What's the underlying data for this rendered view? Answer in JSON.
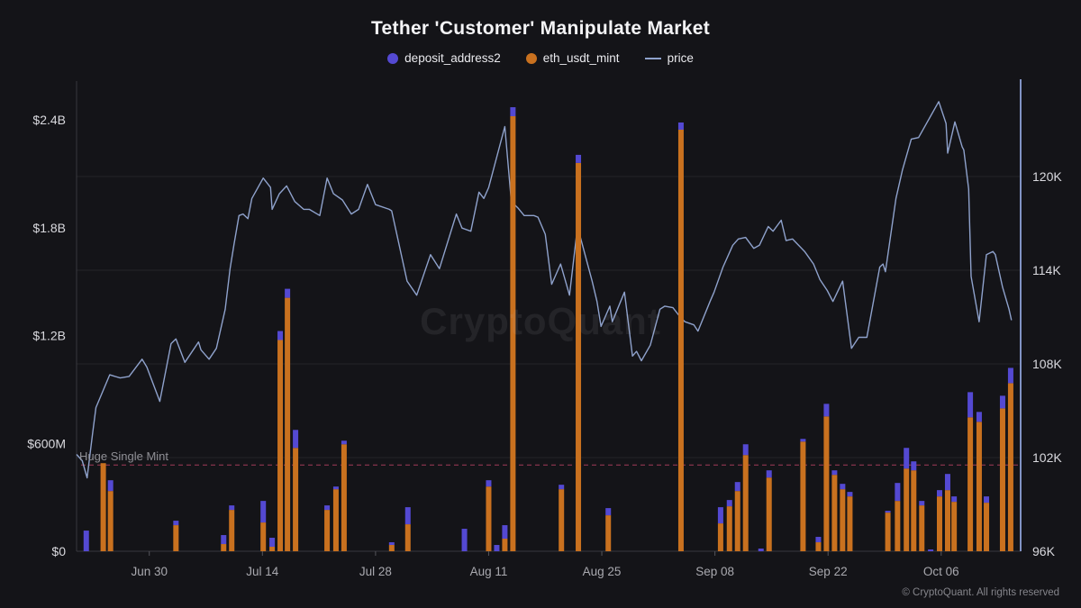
{
  "header": {
    "title": "Tether 'Customer' Manipulate Market"
  },
  "legend": [
    {
      "label": "deposit_address2",
      "marker": "circle",
      "color": "#5449d2"
    },
    {
      "label": "eth_usdt_mint",
      "marker": "circle",
      "color": "#c9711f"
    },
    {
      "label": "price",
      "marker": "line",
      "color": "#8fa2cc"
    }
  ],
  "annotation": {
    "label": "Huge Single Mint",
    "value_musd": 480
  },
  "watermark": "CryptoQuant",
  "footer": {
    "copyright": "© CryptoQuant. All rights reserved"
  },
  "colors": {
    "background": "#141418",
    "bar_mint": "#c9711f",
    "bar_deposit": "#5449d2",
    "price_line": "#8fa2cc",
    "right_axis_line": "#8193c4",
    "threshold": "#a23a58",
    "grid": "#232328",
    "axis": "#38383e",
    "tick_mark": "#55555b",
    "label_primary": "#d9d9de",
    "label_muted": "#a9a9af"
  },
  "chart_data": {
    "type": "mixed",
    "subtype": "stacked-bars-plus-line",
    "title": "Tether 'Customer' Manipulate Market",
    "legend_position": "top",
    "grid": "horizontal-only",
    "day_zero": "Jun 21",
    "x_ticks": [
      {
        "day": 9,
        "label": "Jun 30"
      },
      {
        "day": 23,
        "label": "Jul 14"
      },
      {
        "day": 37,
        "label": "Jul 28"
      },
      {
        "day": 51,
        "label": "Aug 11"
      },
      {
        "day": 65,
        "label": "Aug 25"
      },
      {
        "day": 79,
        "label": "Sep 08"
      },
      {
        "day": 93,
        "label": "Sep 22"
      },
      {
        "day": 107,
        "label": "Oct 06"
      }
    ],
    "y_left": {
      "unit": "USD",
      "range_musd": [
        0,
        2400
      ],
      "ticks": [
        {
          "value": 0,
          "label": "$0"
        },
        {
          "value": 600,
          "label": "$600M"
        },
        {
          "value": 1200,
          "label": "$1.2B"
        },
        {
          "value": 1800,
          "label": "$1.8B"
        },
        {
          "value": 2400,
          "label": "$2.4B"
        }
      ]
    },
    "y_right": {
      "unit": "USD (price)",
      "range_k": [
        96,
        126
      ],
      "ticks": [
        {
          "value": 96,
          "label": "96K"
        },
        {
          "value": 102,
          "label": "102K"
        },
        {
          "value": 108,
          "label": "108K"
        },
        {
          "value": 114,
          "label": "114K"
        },
        {
          "value": 120,
          "label": "120K"
        }
      ]
    },
    "threshold_line": {
      "label": "Huge Single Mint",
      "value_musd": 480,
      "style": "dashed"
    },
    "bars": {
      "stack_order": [
        "eth_usdt_mint",
        "deposit_address2"
      ],
      "unit": "million USD",
      "points_day_mint_deposit": [
        [
          1.2,
          0,
          115
        ],
        [
          3.3,
          490,
          0
        ],
        [
          4.2,
          335,
          60
        ],
        [
          12.3,
          145,
          25
        ],
        [
          18.2,
          40,
          50
        ],
        [
          19.2,
          230,
          25
        ],
        [
          23.1,
          160,
          120
        ],
        [
          24.2,
          25,
          50
        ],
        [
          25.2,
          1175,
          50
        ],
        [
          26.1,
          1410,
          50
        ],
        [
          27.1,
          575,
          100
        ],
        [
          31.0,
          230,
          25
        ],
        [
          32.1,
          345,
          15
        ],
        [
          33.1,
          595,
          20
        ],
        [
          39.0,
          35,
          15
        ],
        [
          41.0,
          150,
          95
        ],
        [
          48.0,
          0,
          125
        ],
        [
          51.0,
          360,
          35
        ],
        [
          52.0,
          0,
          35
        ],
        [
          53.0,
          70,
          75
        ],
        [
          54.0,
          2420,
          50
        ],
        [
          60.0,
          345,
          25
        ],
        [
          62.1,
          2160,
          45
        ],
        [
          65.8,
          200,
          40
        ],
        [
          74.8,
          2345,
          40
        ],
        [
          79.7,
          155,
          90
        ],
        [
          80.8,
          250,
          35
        ],
        [
          81.8,
          335,
          50
        ],
        [
          82.8,
          535,
          60
        ],
        [
          84.7,
          0,
          15
        ],
        [
          85.7,
          410,
          40
        ],
        [
          89.9,
          610,
          15
        ],
        [
          91.8,
          50,
          30
        ],
        [
          92.8,
          750,
          70
        ],
        [
          93.8,
          425,
          25
        ],
        [
          94.8,
          345,
          30
        ],
        [
          95.7,
          305,
          25
        ],
        [
          100.4,
          215,
          10
        ],
        [
          101.6,
          280,
          100
        ],
        [
          102.7,
          460,
          115
        ],
        [
          103.6,
          450,
          50
        ],
        [
          104.6,
          255,
          25
        ],
        [
          105.7,
          0,
          10
        ],
        [
          106.8,
          305,
          35
        ],
        [
          107.8,
          340,
          90
        ],
        [
          108.6,
          275,
          30
        ],
        [
          110.6,
          745,
          140
        ],
        [
          111.7,
          720,
          55
        ],
        [
          112.6,
          270,
          35
        ],
        [
          114.6,
          795,
          70
        ],
        [
          115.6,
          935,
          85
        ]
      ]
    },
    "price_line": {
      "unit": "thousand USD",
      "points_day_price": [
        [
          0,
          102.2
        ],
        [
          0.7,
          101.8
        ],
        [
          1.3,
          100.7
        ],
        [
          2.0,
          103.6
        ],
        [
          2.4,
          105.2
        ],
        [
          4.1,
          107.3
        ],
        [
          5.4,
          107.1
        ],
        [
          6.5,
          107.2
        ],
        [
          8.1,
          108.3
        ],
        [
          8.7,
          107.8
        ],
        [
          10.3,
          105.6
        ],
        [
          11.7,
          109.3
        ],
        [
          12.3,
          109.6
        ],
        [
          13.4,
          108.1
        ],
        [
          15.1,
          109.4
        ],
        [
          15.4,
          108.9
        ],
        [
          16.4,
          108.3
        ],
        [
          17.3,
          109.0
        ],
        [
          18.4,
          111.5
        ],
        [
          19.0,
          114.1
        ],
        [
          19.5,
          115.7
        ],
        [
          20.1,
          117.5
        ],
        [
          20.6,
          117.6
        ],
        [
          21.2,
          117.3
        ],
        [
          21.7,
          118.6
        ],
        [
          23.1,
          119.9
        ],
        [
          24.0,
          119.3
        ],
        [
          24.2,
          117.9
        ],
        [
          25.1,
          118.9
        ],
        [
          26.0,
          119.4
        ],
        [
          27.0,
          118.4
        ],
        [
          28.1,
          117.9
        ],
        [
          28.8,
          117.9
        ],
        [
          30.1,
          117.5
        ],
        [
          31.0,
          119.9
        ],
        [
          31.8,
          118.9
        ],
        [
          32.9,
          118.5
        ],
        [
          34.0,
          117.6
        ],
        [
          34.9,
          117.9
        ],
        [
          36.0,
          119.5
        ],
        [
          37.0,
          118.2
        ],
        [
          38.7,
          117.9
        ],
        [
          39.0,
          117.8
        ],
        [
          40.9,
          113.3
        ],
        [
          42.1,
          112.4
        ],
        [
          43.8,
          115.0
        ],
        [
          44.9,
          114.1
        ],
        [
          47.0,
          117.6
        ],
        [
          47.7,
          116.7
        ],
        [
          48.8,
          116.5
        ],
        [
          49.8,
          119.0
        ],
        [
          50.4,
          118.6
        ],
        [
          51.0,
          119.3
        ],
        [
          53.0,
          123.2
        ],
        [
          53.8,
          118.4
        ],
        [
          54.6,
          118.0
        ],
        [
          55.4,
          117.5
        ],
        [
          56.6,
          117.5
        ],
        [
          57.1,
          117.4
        ],
        [
          58.0,
          116.3
        ],
        [
          58.8,
          113.1
        ],
        [
          59.9,
          114.4
        ],
        [
          61.0,
          112.4
        ],
        [
          62.0,
          116.8
        ],
        [
          63.8,
          113.3
        ],
        [
          64.4,
          112.0
        ],
        [
          64.9,
          110.4
        ],
        [
          66.0,
          111.7
        ],
        [
          66.3,
          110.7
        ],
        [
          67.8,
          112.6
        ],
        [
          68.8,
          108.5
        ],
        [
          69.3,
          108.8
        ],
        [
          69.9,
          108.2
        ],
        [
          71.0,
          109.2
        ],
        [
          72.2,
          111.5
        ],
        [
          72.8,
          111.7
        ],
        [
          73.8,
          111.6
        ],
        [
          74.7,
          111.0
        ],
        [
          75.3,
          110.7
        ],
        [
          76.4,
          110.5
        ],
        [
          76.9,
          110.1
        ],
        [
          78.4,
          112.0
        ],
        [
          78.9,
          112.6
        ],
        [
          80.0,
          114.2
        ],
        [
          81.2,
          115.6
        ],
        [
          81.9,
          116.0
        ],
        [
          82.8,
          116.1
        ],
        [
          83.8,
          115.4
        ],
        [
          84.5,
          115.6
        ],
        [
          85.6,
          116.8
        ],
        [
          86.2,
          116.5
        ],
        [
          87.2,
          117.2
        ],
        [
          87.8,
          115.9
        ],
        [
          88.6,
          116.0
        ],
        [
          90.1,
          115.2
        ],
        [
          91.2,
          114.4
        ],
        [
          92.0,
          113.4
        ],
        [
          92.9,
          112.7
        ],
        [
          93.6,
          112.0
        ],
        [
          94.8,
          113.3
        ],
        [
          95.7,
          109.8
        ],
        [
          95.9,
          109.0
        ],
        [
          96.8,
          109.7
        ],
        [
          97.8,
          109.7
        ],
        [
          99.4,
          114.2
        ],
        [
          99.8,
          114.4
        ],
        [
          100.1,
          113.9
        ],
        [
          101.4,
          118.6
        ],
        [
          102.2,
          120.4
        ],
        [
          103.3,
          122.4
        ],
        [
          104.2,
          122.5
        ],
        [
          106.7,
          124.8
        ],
        [
          107.6,
          123.4
        ],
        [
          107.8,
          121.5
        ],
        [
          108.7,
          123.5
        ],
        [
          109.6,
          121.9
        ],
        [
          109.8,
          121.7
        ],
        [
          110.4,
          119.2
        ],
        [
          110.7,
          113.6
        ],
        [
          111.7,
          110.7
        ],
        [
          112.6,
          115.0
        ],
        [
          113.4,
          115.2
        ],
        [
          113.7,
          115.0
        ],
        [
          114.6,
          112.9
        ],
        [
          115.4,
          111.5
        ],
        [
          115.7,
          110.8
        ]
      ]
    }
  }
}
